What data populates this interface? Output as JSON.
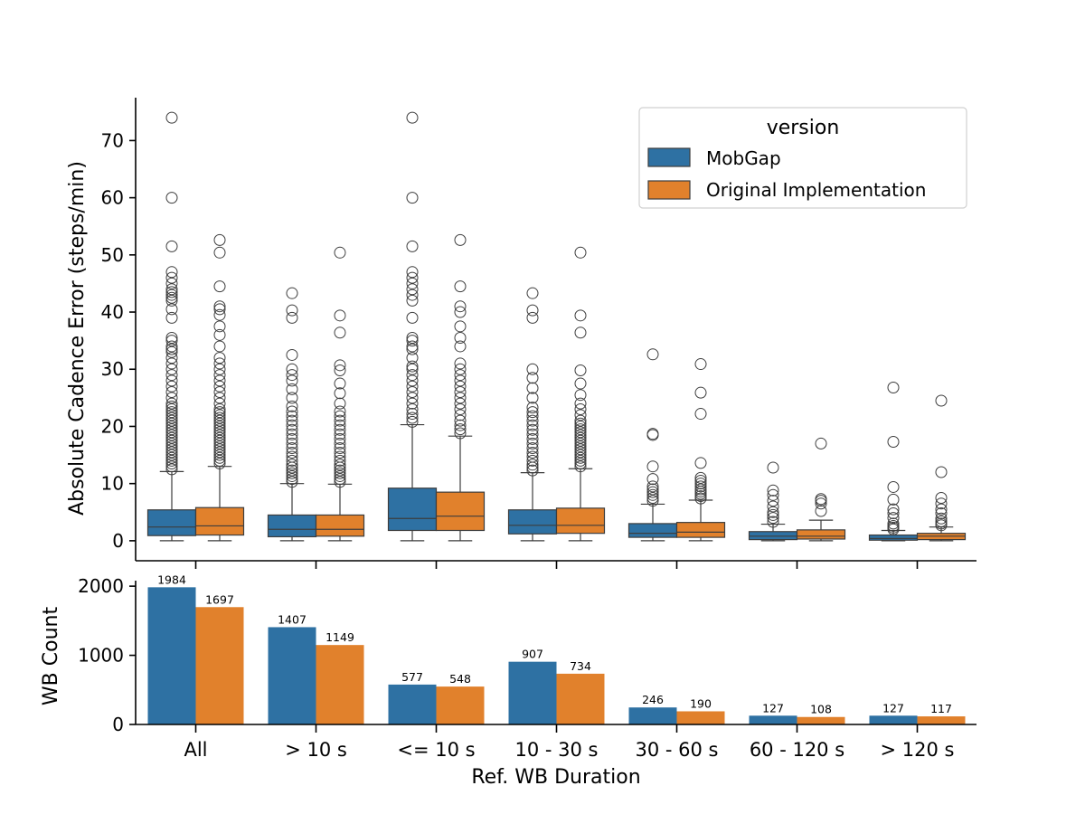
{
  "chart_data": [
    {
      "type": "box",
      "ylabel": "Absolute Cadence Error (steps/min)",
      "ylim": [
        -3.5,
        77.5
      ],
      "yticks": [
        0,
        10,
        20,
        30,
        40,
        50,
        60,
        70
      ],
      "categories": [
        "All",
        "> 10 s",
        "<= 10 s",
        "10 - 30 s",
        "30 - 60 s",
        "60 - 120 s",
        "> 120 s"
      ],
      "legend": {
        "title": "version",
        "placement": "top-right",
        "entries": [
          "MobGap",
          "Original Implementation"
        ]
      },
      "series": [
        {
          "name": "MobGap",
          "color": "#2e71a3",
          "boxes": [
            {
              "whislo": 0,
              "q1": 0.9,
              "med": 2.4,
              "q3": 5.4,
              "whishi": 12.1,
              "fliers": [
                12.5,
                13,
                13.5,
                14,
                14.5,
                15,
                15.5,
                16,
                16.5,
                17,
                17.5,
                18,
                18.5,
                19,
                19.5,
                20,
                20.5,
                21,
                21.5,
                22,
                22.5,
                23,
                23.5,
                24,
                25,
                26,
                27,
                28,
                29,
                30,
                31,
                32,
                33,
                33.5,
                34,
                35,
                35.5,
                39,
                40.5,
                42,
                42.5,
                43,
                43.5,
                44,
                45,
                46,
                47,
                51.5,
                60,
                74
              ]
            },
            {
              "whislo": 0,
              "q1": 0.7,
              "med": 2.0,
              "q3": 4.5,
              "whishi": 10,
              "fliers": [
                10.3,
                10.8,
                11.3,
                11.8,
                12.3,
                12.8,
                13.3,
                14,
                14.7,
                15.4,
                16.2,
                17,
                17.8,
                18.6,
                19.4,
                20.2,
                21,
                21.8,
                22.6,
                23.5,
                25,
                26.5,
                28,
                29,
                30,
                32.5,
                39,
                40.3,
                43.3
              ]
            },
            {
              "whislo": 0,
              "q1": 1.8,
              "med": 3.9,
              "q3": 9.2,
              "whishi": 20.3,
              "fliers": [
                20.8,
                21.5,
                22.2,
                23,
                24,
                25,
                26,
                27,
                28,
                29,
                30,
                30.5,
                32,
                33.5,
                34,
                35,
                35.5,
                39,
                42,
                43,
                44,
                45,
                46,
                47,
                51.5,
                60,
                74
              ]
            },
            {
              "whislo": 0,
              "q1": 1.2,
              "med": 2.7,
              "q3": 5.4,
              "whishi": 11.9,
              "fliers": [
                12.3,
                12.8,
                13.3,
                14,
                14.7,
                15.4,
                16.2,
                17,
                17.8,
                18.6,
                19.4,
                20.2,
                21,
                21.8,
                22.5,
                23.3,
                25,
                26.7,
                28.5,
                30,
                39,
                40.3,
                43.3
              ]
            },
            {
              "whislo": 0,
              "q1": 0.6,
              "med": 1.3,
              "q3": 3.0,
              "whishi": 6.4,
              "fliers": [
                7,
                7.5,
                8,
                8.5,
                9,
                9.5,
                10.8,
                13,
                18.5,
                18.7,
                32.6
              ]
            },
            {
              "whislo": 0,
              "q1": 0.2,
              "med": 0.8,
              "q3": 1.6,
              "whishi": 2.9,
              "fliers": [
                3.3,
                4,
                4.5,
                5,
                6,
                7,
                8,
                8.8,
                12.8
              ]
            },
            {
              "whislo": 0,
              "q1": 0.1,
              "med": 0.4,
              "q3": 1.0,
              "whishi": 1.8,
              "fliers": [
                2,
                2.3,
                2.6,
                3,
                4,
                4.8,
                5.5,
                7.2,
                9.4,
                17.3,
                26.8
              ]
            }
          ]
        },
        {
          "name": "Original Implementation",
          "color": "#e1812c",
          "boxes": [
            {
              "whislo": 0,
              "q1": 1.0,
              "med": 2.6,
              "q3": 5.8,
              "whishi": 13,
              "fliers": [
                13.5,
                14,
                14.5,
                15,
                15.5,
                16,
                16.5,
                17,
                17.5,
                18,
                18.5,
                19,
                19.5,
                20,
                20.5,
                21,
                21.5,
                22,
                22.5,
                23,
                24,
                25,
                26,
                27,
                28,
                29,
                30,
                31,
                32,
                34,
                36,
                37.5,
                39.5,
                40.5,
                41,
                44.5,
                50.4,
                52.6
              ]
            },
            {
              "whislo": 0,
              "q1": 0.8,
              "med": 2.0,
              "q3": 4.5,
              "whishi": 9.9,
              "fliers": [
                10.3,
                10.8,
                11.3,
                11.8,
                12.3,
                12.8,
                13.3,
                14,
                14.7,
                15.4,
                16.2,
                17,
                17.8,
                18.6,
                19.4,
                20.2,
                21,
                21.8,
                22.6,
                24,
                25.8,
                27.5,
                29.8,
                30.7,
                36.4,
                39.4,
                50.4
              ]
            },
            {
              "whislo": 0,
              "q1": 1.8,
              "med": 4.3,
              "q3": 8.5,
              "whishi": 18.3,
              "fliers": [
                18.8,
                19.5,
                20.2,
                21,
                22,
                23,
                24,
                25,
                26,
                27,
                28,
                29,
                30,
                31,
                34,
                35.5,
                37.5,
                40,
                41,
                44.5,
                52.6
              ]
            },
            {
              "whislo": 0,
              "q1": 1.3,
              "med": 2.7,
              "q3": 5.7,
              "whishi": 12.6,
              "fliers": [
                13,
                13.5,
                14,
                14.5,
                15,
                15.5,
                16,
                16.5,
                17,
                17.5,
                18,
                18.5,
                19,
                19.5,
                20,
                20.5,
                21,
                22,
                23,
                24,
                25.5,
                27.5,
                29.8,
                36.4,
                39.4,
                50.4
              ]
            },
            {
              "whislo": 0,
              "q1": 0.6,
              "med": 1.5,
              "q3": 3.2,
              "whishi": 7.1,
              "fliers": [
                7.4,
                7.8,
                8.2,
                8.6,
                9,
                9.5,
                10,
                10.5,
                11,
                13.6,
                22.2,
                25.9,
                30.9
              ]
            },
            {
              "whislo": 0,
              "q1": 0.3,
              "med": 0.8,
              "q3": 1.9,
              "whishi": 3.6,
              "fliers": [
                5.2,
                6.5,
                7,
                7.3,
                17
              ]
            },
            {
              "whislo": 0,
              "q1": 0.2,
              "med": 0.8,
              "q3": 1.3,
              "whishi": 2.4,
              "fliers": [
                2.7,
                3,
                3.4,
                3.9,
                4.8,
                5.5,
                6.5,
                7.5,
                12,
                24.5
              ]
            }
          ]
        }
      ]
    },
    {
      "type": "bar",
      "xlabel": "Ref. WB Duration",
      "ylabel": "WB Count",
      "ylim": [
        0,
        2080
      ],
      "yticks": [
        0,
        1000,
        2000
      ],
      "categories": [
        "All",
        "> 10 s",
        "<= 10 s",
        "10 - 30 s",
        "30 - 60 s",
        "60 - 120 s",
        "> 120 s"
      ],
      "series": [
        {
          "name": "MobGap",
          "color": "#2e71a3",
          "values": [
            1984,
            1407,
            577,
            907,
            246,
            127,
            127
          ]
        },
        {
          "name": "Original Implementation",
          "color": "#e1812c",
          "values": [
            1697,
            1149,
            548,
            734,
            190,
            108,
            117
          ]
        }
      ]
    }
  ]
}
